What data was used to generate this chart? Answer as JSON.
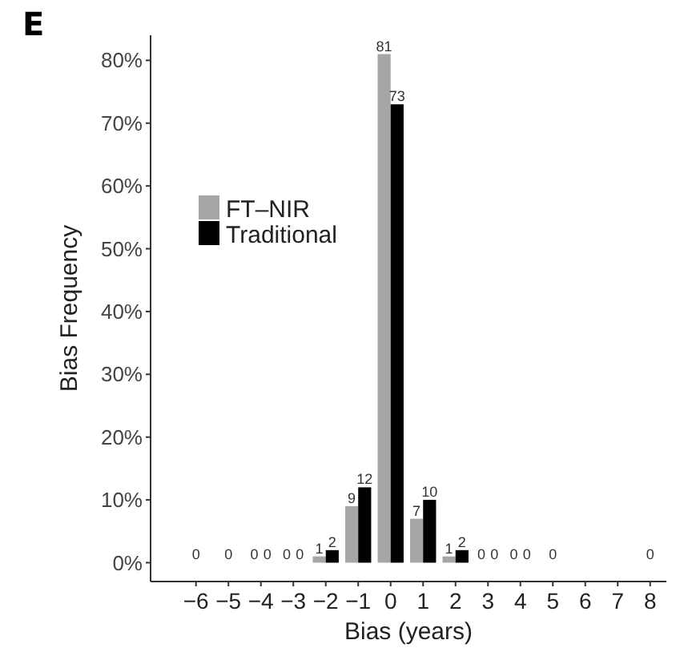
{
  "chart_data": {
    "type": "bar",
    "title": "E",
    "xlabel": "Bias (years)",
    "ylabel": "Bias Frequency",
    "x": [
      -6,
      -5,
      -4,
      -3,
      -2,
      -1,
      0,
      1,
      2,
      3,
      4,
      5,
      8
    ],
    "series": [
      {
        "name": "FT–NIR",
        "color": "#a6a6a6",
        "values": [
          0,
          0,
          0,
          0,
          1,
          9,
          81,
          7,
          1,
          0,
          0,
          0,
          0
        ]
      },
      {
        "name": "Traditional",
        "color": "#000000",
        "values": [
          null,
          null,
          0,
          0,
          2,
          12,
          73,
          10,
          2,
          0,
          0,
          null,
          null
        ]
      }
    ],
    "data_labels": true,
    "legend": "top left",
    "grid": false,
    "xlim": [
      -7.4,
      8.5
    ],
    "ylim": [
      -3,
      84
    ],
    "xticks": [
      {
        "value": -6,
        "label": "−6"
      },
      {
        "value": -5,
        "label": "−5"
      },
      {
        "value": -4,
        "label": "−4"
      },
      {
        "value": -3,
        "label": "−3"
      },
      {
        "value": -2,
        "label": "−2"
      },
      {
        "value": -1,
        "label": "−1"
      },
      0,
      1,
      2,
      3,
      4,
      5,
      6,
      7,
      8
    ],
    "yticks": [
      {
        "value": 0,
        "label": "0%"
      },
      {
        "value": 10,
        "label": "10%"
      },
      {
        "value": 20,
        "label": "20%"
      },
      {
        "value": 30,
        "label": "30%"
      },
      {
        "value": 40,
        "label": "40%"
      },
      {
        "value": 50,
        "label": "50%"
      },
      {
        "value": 60,
        "label": "60%"
      },
      {
        "value": 70,
        "label": "70%"
      },
      {
        "value": 80,
        "label": "80%"
      }
    ]
  }
}
